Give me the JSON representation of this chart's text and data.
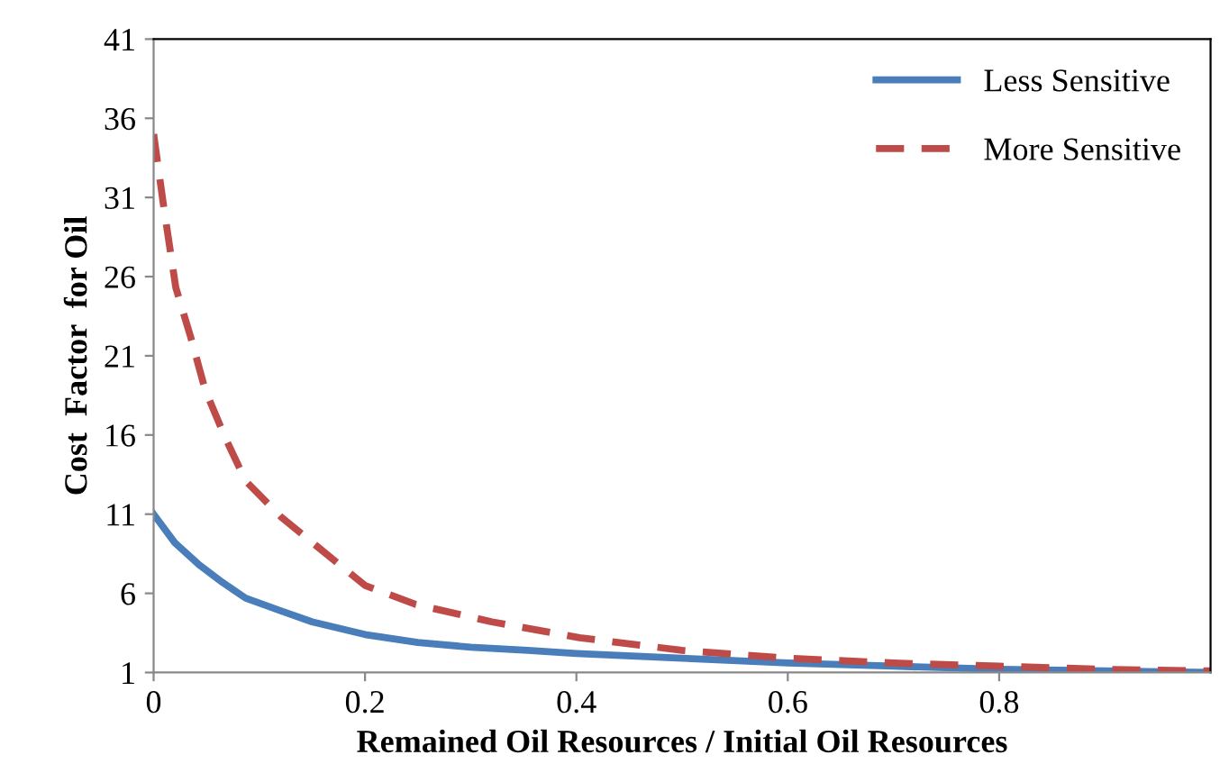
{
  "chart_data": {
    "type": "line",
    "xlabel": "Remained Oil Resources / Initial Oil Resources",
    "ylabel": "Cost  Factor  for Oil",
    "xlim": [
      0,
      1
    ],
    "xticks": [
      0,
      0.2,
      0.4,
      0.6,
      0.8
    ],
    "ylim": [
      1,
      41
    ],
    "yticks": [
      1,
      6,
      11,
      16,
      21,
      26,
      31,
      36,
      41
    ],
    "grid": false,
    "legend": "top right",
    "series": [
      {
        "name": "Less Sensitive",
        "color": "#4a7ebb",
        "line_style": "solid",
        "x": [
          0,
          0.02,
          0.043,
          0.065,
          0.087,
          0.12,
          0.15,
          0.2,
          0.25,
          0.3,
          0.354,
          0.4,
          0.5,
          0.6,
          0.7,
          0.8,
          0.9,
          1.0
        ],
        "values": [
          11,
          9.2,
          7.8,
          6.7,
          5.7,
          4.9,
          4.2,
          3.4,
          2.9,
          2.6,
          2.4,
          2.2,
          1.9,
          1.6,
          1.4,
          1.2,
          1.1,
          1.0
        ]
      },
      {
        "name": "More Sensitive",
        "color": "#be4b48",
        "line_style": "dashed",
        "x": [
          0,
          0.01,
          0.021,
          0.035,
          0.049,
          0.068,
          0.087,
          0.121,
          0.154,
          0.2,
          0.248,
          0.32,
          0.403,
          0.5,
          0.6,
          0.7,
          0.8,
          0.9,
          1.0
        ],
        "values": [
          35,
          30.2,
          25.3,
          22.2,
          18.8,
          15.8,
          13.1,
          10.8,
          9.0,
          6.5,
          5.3,
          4.2,
          3.2,
          2.4,
          1.9,
          1.6,
          1.4,
          1.2,
          1.1
        ]
      }
    ]
  }
}
